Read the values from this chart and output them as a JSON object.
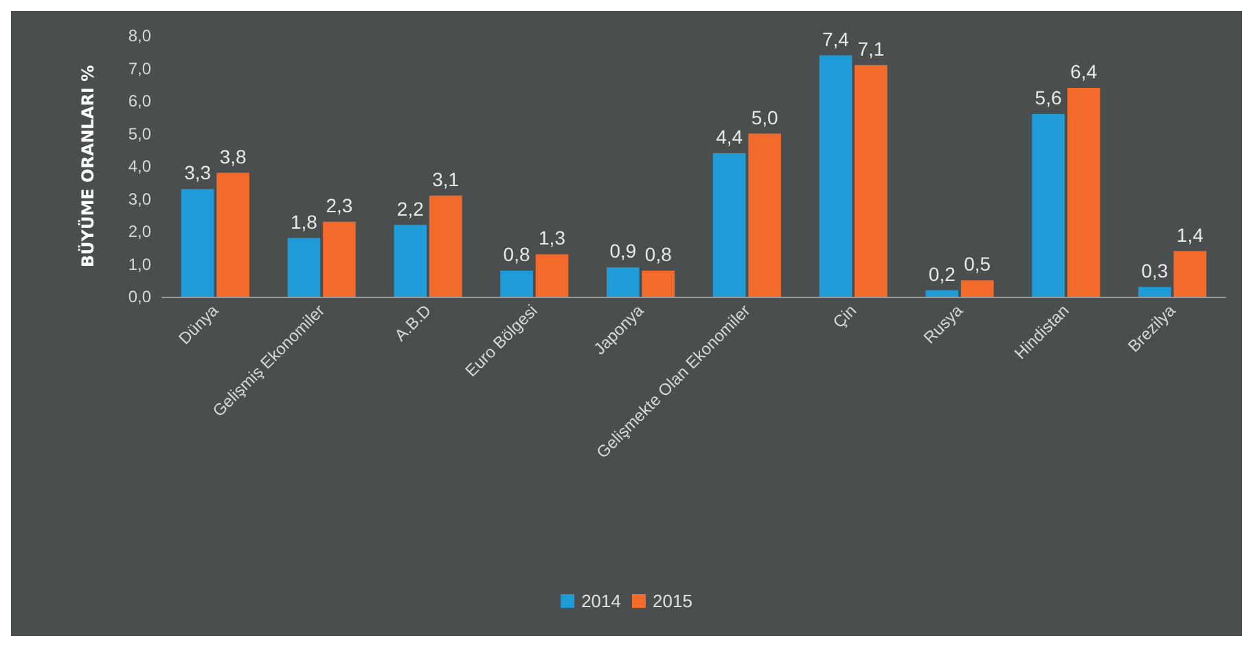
{
  "chart_data": {
    "type": "bar",
    "ylabel": "BÜYÜME ORANLARI %",
    "categories": [
      "Dünya",
      "Gelişmiş Ekonomiler",
      "A.B.D",
      "Euro Bölgesi",
      "Japonya",
      "Gelişmekte Olan Ekonomiler",
      "Çin",
      "Rusya",
      "Hindistan",
      "Brezilya"
    ],
    "series": [
      {
        "name": "2014",
        "color": "#1f9bd7",
        "values": [
          3.3,
          1.8,
          2.2,
          0.8,
          0.9,
          4.4,
          7.4,
          0.2,
          5.6,
          0.3
        ],
        "value_labels": [
          "3,3",
          "1,8",
          "2,2",
          "0,8",
          "0,9",
          "4,4",
          "7,4",
          "0,2",
          "5,6",
          "0,3"
        ]
      },
      {
        "name": "2015",
        "color": "#f26b2b",
        "values": [
          3.8,
          2.3,
          3.1,
          1.3,
          0.8,
          5.0,
          7.1,
          0.5,
          6.4,
          1.4
        ],
        "value_labels": [
          "3,8",
          "2,3",
          "3,1",
          "1,3",
          "0,8",
          "5,0",
          "7,1",
          "0,5",
          "6,4",
          "1,4"
        ]
      }
    ],
    "ylim": [
      0,
      8
    ],
    "yticks": [
      {
        "value": 0,
        "label": "0,0"
      },
      {
        "value": 1,
        "label": "1,0"
      },
      {
        "value": 2,
        "label": "2,0"
      },
      {
        "value": 3,
        "label": "3,0"
      },
      {
        "value": 4,
        "label": "4,0"
      },
      {
        "value": 5,
        "label": "5,0"
      },
      {
        "value": 6,
        "label": "6,0"
      },
      {
        "value": 7,
        "label": "7,0"
      },
      {
        "value": 8,
        "label": "8,0"
      }
    ],
    "grid": false,
    "legend": "bottom"
  }
}
